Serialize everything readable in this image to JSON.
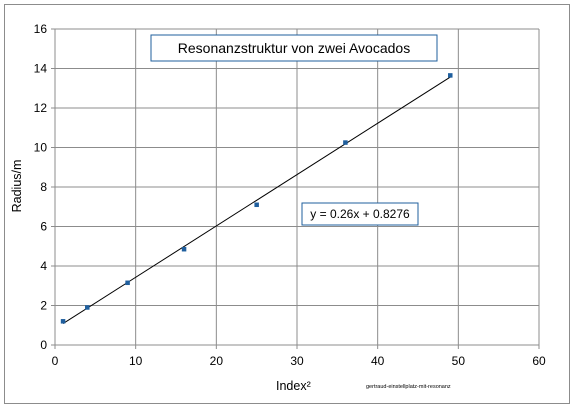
{
  "chart_data": {
    "type": "scatter",
    "title": "Resonanzstruktur von zwei Avocados",
    "xlabel": "Index²",
    "ylabel": "Radius/m",
    "xlim": [
      0,
      60
    ],
    "ylim": [
      0,
      16
    ],
    "x_ticks": [
      "0",
      "10",
      "20",
      "30",
      "40",
      "50",
      "60"
    ],
    "y_ticks": [
      "0",
      "2",
      "4",
      "6",
      "8",
      "10",
      "12",
      "14",
      "16"
    ],
    "grid": true,
    "points": [
      {
        "x": 1,
        "y": 1.2
      },
      {
        "x": 4,
        "y": 1.9
      },
      {
        "x": 9,
        "y": 3.15
      },
      {
        "x": 16,
        "y": 4.85
      },
      {
        "x": 25,
        "y": 7.1
      },
      {
        "x": 36,
        "y": 10.25
      },
      {
        "x": 49,
        "y": 13.65
      }
    ],
    "trendline": {
      "slope": 0.26,
      "intercept": 0.8276,
      "x_range": [
        1,
        49
      ]
    },
    "equation_label": "y = 0.26x + 0.8276",
    "annotation": "gertraud-einstellplatz-mit-resonanz",
    "marker_color": "#1f5f9e",
    "line_color": "#000000"
  }
}
